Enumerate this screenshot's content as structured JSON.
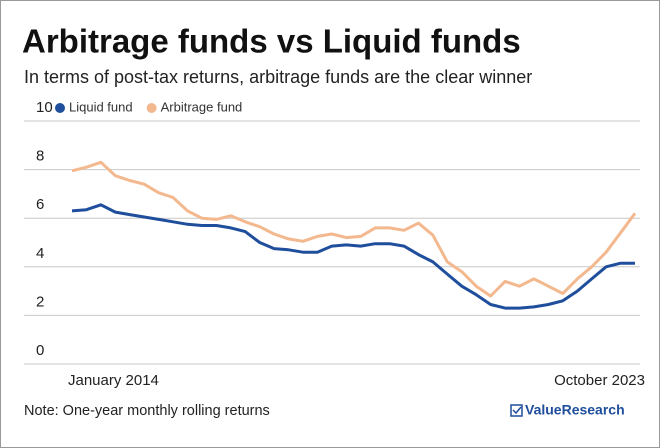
{
  "chart_data": {
    "type": "line",
    "title": "Arbitrage funds vs Liquid funds",
    "subtitle": "In terms of post-tax returns, arbitrage funds are the clear winner",
    "note": "Note: One-year monthly rolling returns",
    "source": "ValueResearch",
    "categories": [
      "January 2014",
      null,
      null,
      null,
      null,
      null,
      null,
      null,
      null,
      null,
      null,
      null,
      null,
      null,
      null,
      null,
      null,
      null,
      null,
      null,
      null,
      null,
      null,
      null,
      null,
      null,
      null,
      null,
      null,
      null,
      null,
      null,
      null,
      null,
      null,
      null,
      null,
      null,
      null,
      "October 2023"
    ],
    "series": [
      {
        "name": "Liquid fund",
        "color": "#1f4e9c",
        "values": [
          6.3,
          6.35,
          6.55,
          6.25,
          6.15,
          6.05,
          5.95,
          5.85,
          5.75,
          5.7,
          5.7,
          5.6,
          5.45,
          5.0,
          4.75,
          4.7,
          4.6,
          4.6,
          4.85,
          4.9,
          4.85,
          4.95,
          4.95,
          4.85,
          4.5,
          4.2,
          3.7,
          3.2,
          2.85,
          2.45,
          2.3,
          2.3,
          2.35,
          2.45,
          2.6,
          3.0,
          3.5,
          4.0,
          4.15,
          4.15
        ]
      },
      {
        "name": "Arbitrage fund",
        "color": "#f4b88e",
        "values": [
          7.95,
          8.1,
          8.3,
          7.75,
          7.55,
          7.4,
          7.05,
          6.85,
          6.3,
          6.0,
          5.95,
          6.1,
          5.85,
          5.65,
          5.35,
          5.15,
          5.05,
          5.25,
          5.35,
          5.2,
          5.25,
          5.6,
          5.6,
          5.5,
          5.8,
          5.3,
          4.2,
          3.8,
          3.2,
          2.8,
          3.4,
          3.2,
          3.5,
          3.2,
          2.9,
          3.5,
          4.0,
          4.6,
          5.4,
          6.2
        ]
      }
    ],
    "ylim": [
      0,
      10
    ],
    "yticks": [
      0,
      2,
      4,
      6,
      8,
      10
    ],
    "grid": true
  }
}
